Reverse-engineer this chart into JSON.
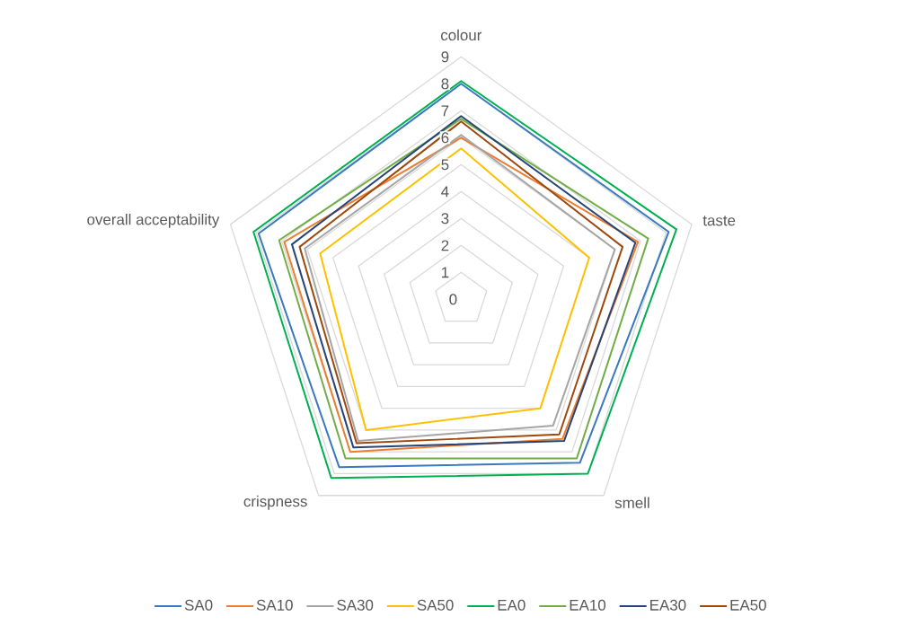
{
  "chart_data": {
    "type": "radar",
    "categories": [
      "colour",
      "taste",
      "smell",
      "crispness",
      "overall acceptability"
    ],
    "series": [
      {
        "name": "SA0",
        "color": "#3a78c0",
        "values": [
          8.0,
          8.1,
          7.5,
          7.7,
          7.9
        ]
      },
      {
        "name": "SA10",
        "color": "#ed7d31",
        "values": [
          6.0,
          6.9,
          6.4,
          7.0,
          6.9
        ]
      },
      {
        "name": "SA30",
        "color": "#a5a5a5",
        "values": [
          6.1,
          6.0,
          5.8,
          6.5,
          6.1
        ]
      },
      {
        "name": "SA50",
        "color": "#ffc000",
        "values": [
          5.6,
          5.0,
          5.0,
          6.0,
          5.5
        ]
      },
      {
        "name": "EA0",
        "color": "#00b050",
        "values": [
          8.1,
          8.4,
          8.0,
          8.2,
          8.1
        ]
      },
      {
        "name": "EA10",
        "color": "#70ad47",
        "values": [
          6.7,
          7.3,
          7.3,
          7.3,
          7.1
        ]
      },
      {
        "name": "EA30",
        "color": "#264478",
        "values": [
          6.8,
          6.8,
          6.5,
          6.8,
          6.6
        ]
      },
      {
        "name": "EA50",
        "color": "#9e480e",
        "values": [
          6.6,
          6.3,
          6.2,
          6.6,
          6.3
        ]
      }
    ],
    "ylim": [
      0,
      9
    ],
    "yticks": [
      0,
      1,
      2,
      3,
      4,
      5,
      6,
      7,
      8,
      9
    ],
    "grid": true,
    "legend": "bottom"
  }
}
